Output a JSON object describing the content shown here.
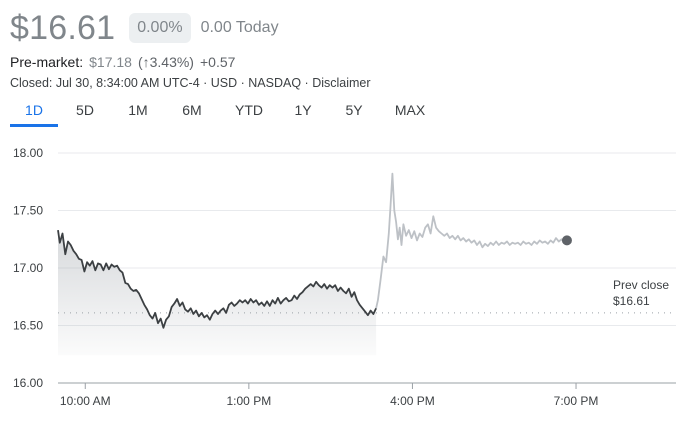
{
  "quote": {
    "price": "$16.61",
    "change_pct": "0.00%",
    "change_today": "0.00 Today",
    "premarket_label": "Pre-market:",
    "premarket_price": "$17.18",
    "premarket_pct": "(↑3.43%)",
    "premarket_abs": "+0.57",
    "closed_info": "Closed: Jul 30, 8:34:00 AM UTC-4 · USD · NASDAQ · ",
    "disclaimer": "Disclaimer"
  },
  "ranges": [
    "1D",
    "5D",
    "1M",
    "6M",
    "YTD",
    "1Y",
    "5Y",
    "MAX"
  ],
  "active_range": "1D",
  "colors": {
    "accent": "#1a73e8",
    "line": "#3c4043",
    "extended": "#bdc1c6",
    "text_muted": "#80868b"
  },
  "chart_data": {
    "type": "line",
    "title": "",
    "xlabel": "",
    "ylabel": "",
    "ylim": [
      16.0,
      18.0
    ],
    "y_ticks": [
      "18.00",
      "17.50",
      "17.00",
      "16.50",
      "16.00"
    ],
    "x_ticks": [
      {
        "label": "10:00 AM",
        "t": 60
      },
      {
        "label": "1:00 PM",
        "t": 240
      },
      {
        "label": "4:00 PM",
        "t": 420
      },
      {
        "label": "7:00 PM",
        "t": 600
      }
    ],
    "x_range_minutes_from_0900": [
      30,
      710
    ],
    "previous_close": 16.61,
    "prev_close_label": "Prev close",
    "prev_close_value": "$16.61",
    "regular_session": [
      [
        30,
        17.33
      ],
      [
        32,
        17.22
      ],
      [
        35,
        17.3
      ],
      [
        38,
        17.12
      ],
      [
        41,
        17.23
      ],
      [
        44,
        17.2
      ],
      [
        47,
        17.15
      ],
      [
        50,
        17.12
      ],
      [
        53,
        17.08
      ],
      [
        56,
        17.07
      ],
      [
        59,
        16.97
      ],
      [
        62,
        17.05
      ],
      [
        65,
        17.02
      ],
      [
        68,
        17.06
      ],
      [
        71,
        16.98
      ],
      [
        74,
        17.04
      ],
      [
        77,
        17.03
      ],
      [
        80,
        16.98
      ],
      [
        83,
        17.04
      ],
      [
        86,
        16.99
      ],
      [
        89,
        17.03
      ],
      [
        92,
        17.01
      ],
      [
        95,
        17.02
      ],
      [
        98,
        16.98
      ],
      [
        101,
        16.96
      ],
      [
        104,
        16.87
      ],
      [
        107,
        16.86
      ],
      [
        110,
        16.82
      ],
      [
        113,
        16.8
      ],
      [
        116,
        16.81
      ],
      [
        119,
        16.78
      ],
      [
        122,
        16.73
      ],
      [
        125,
        16.68
      ],
      [
        128,
        16.64
      ],
      [
        131,
        16.59
      ],
      [
        134,
        16.56
      ],
      [
        137,
        16.61
      ],
      [
        140,
        16.52
      ],
      [
        143,
        16.56
      ],
      [
        146,
        16.48
      ],
      [
        149,
        16.55
      ],
      [
        152,
        16.58
      ],
      [
        155,
        16.66
      ],
      [
        158,
        16.69
      ],
      [
        161,
        16.73
      ],
      [
        164,
        16.67
      ],
      [
        167,
        16.7
      ],
      [
        170,
        16.64
      ],
      [
        173,
        16.62
      ],
      [
        176,
        16.65
      ],
      [
        179,
        16.6
      ],
      [
        182,
        16.63
      ],
      [
        185,
        16.58
      ],
      [
        188,
        16.61
      ],
      [
        191,
        16.57
      ],
      [
        194,
        16.59
      ],
      [
        197,
        16.55
      ],
      [
        200,
        16.6
      ],
      [
        203,
        16.63
      ],
      [
        206,
        16.6
      ],
      [
        209,
        16.63
      ],
      [
        212,
        16.65
      ],
      [
        215,
        16.61
      ],
      [
        218,
        16.68
      ],
      [
        221,
        16.7
      ],
      [
        224,
        16.67
      ],
      [
        227,
        16.69
      ],
      [
        230,
        16.72
      ],
      [
        233,
        16.7
      ],
      [
        236,
        16.72
      ],
      [
        239,
        16.69
      ],
      [
        242,
        16.73
      ],
      [
        245,
        16.7
      ],
      [
        248,
        16.72
      ],
      [
        251,
        16.68
      ],
      [
        254,
        16.7
      ],
      [
        257,
        16.67
      ],
      [
        260,
        16.71
      ],
      [
        263,
        16.67
      ],
      [
        266,
        16.72
      ],
      [
        269,
        16.69
      ],
      [
        272,
        16.74
      ],
      [
        275,
        16.69
      ],
      [
        278,
        16.72
      ],
      [
        281,
        16.74
      ],
      [
        284,
        16.71
      ],
      [
        287,
        16.72
      ],
      [
        290,
        16.76
      ],
      [
        293,
        16.73
      ],
      [
        296,
        16.77
      ],
      [
        299,
        16.79
      ],
      [
        302,
        16.82
      ],
      [
        305,
        16.84
      ],
      [
        308,
        16.86
      ],
      [
        311,
        16.84
      ],
      [
        314,
        16.88
      ],
      [
        317,
        16.85
      ],
      [
        320,
        16.83
      ],
      [
        323,
        16.86
      ],
      [
        326,
        16.82
      ],
      [
        329,
        16.85
      ],
      [
        332,
        16.83
      ],
      [
        335,
        16.85
      ],
      [
        338,
        16.8
      ],
      [
        341,
        16.83
      ],
      [
        344,
        16.8
      ],
      [
        347,
        16.78
      ],
      [
        350,
        16.82
      ],
      [
        353,
        16.75
      ],
      [
        356,
        16.79
      ],
      [
        359,
        16.72
      ],
      [
        362,
        16.68
      ],
      [
        365,
        16.65
      ],
      [
        368,
        16.62
      ],
      [
        371,
        16.59
      ],
      [
        374,
        16.63
      ],
      [
        377,
        16.6
      ],
      [
        380,
        16.65
      ]
    ],
    "extended_session": [
      [
        380,
        16.65
      ],
      [
        382,
        16.72
      ],
      [
        385,
        16.9
      ],
      [
        388,
        17.1
      ],
      [
        391,
        17.05
      ],
      [
        394,
        17.3
      ],
      [
        396,
        17.55
      ],
      [
        398,
        17.82
      ],
      [
        400,
        17.5
      ],
      [
        402,
        17.4
      ],
      [
        404,
        17.25
      ],
      [
        406,
        17.35
      ],
      [
        408,
        17.2
      ],
      [
        410,
        17.38
      ],
      [
        413,
        17.28
      ],
      [
        416,
        17.33
      ],
      [
        419,
        17.26
      ],
      [
        422,
        17.32
      ],
      [
        425,
        17.24
      ],
      [
        428,
        17.3
      ],
      [
        431,
        17.27
      ],
      [
        434,
        17.35
      ],
      [
        437,
        17.38
      ],
      [
        440,
        17.3
      ],
      [
        443,
        17.45
      ],
      [
        446,
        17.35
      ],
      [
        449,
        17.32
      ],
      [
        452,
        17.3
      ],
      [
        455,
        17.28
      ],
      [
        458,
        17.3
      ],
      [
        461,
        17.26
      ],
      [
        464,
        17.28
      ],
      [
        467,
        17.25
      ],
      [
        470,
        17.28
      ],
      [
        473,
        17.24
      ],
      [
        476,
        17.26
      ],
      [
        479,
        17.23
      ],
      [
        482,
        17.25
      ],
      [
        485,
        17.22
      ],
      [
        488,
        17.24
      ],
      [
        491,
        17.2
      ],
      [
        494,
        17.23
      ],
      [
        497,
        17.18
      ],
      [
        500,
        17.21
      ],
      [
        503,
        17.19
      ],
      [
        506,
        17.22
      ],
      [
        509,
        17.2
      ],
      [
        512,
        17.23
      ],
      [
        515,
        17.2
      ],
      [
        518,
        17.22
      ],
      [
        521,
        17.21
      ],
      [
        524,
        17.23
      ],
      [
        527,
        17.2
      ],
      [
        530,
        17.22
      ],
      [
        533,
        17.21
      ],
      [
        536,
        17.22
      ],
      [
        539,
        17.2
      ],
      [
        542,
        17.23
      ],
      [
        545,
        17.21
      ],
      [
        548,
        17.22
      ],
      [
        551,
        17.2
      ],
      [
        554,
        17.23
      ],
      [
        557,
        17.21
      ],
      [
        560,
        17.24
      ],
      [
        563,
        17.22
      ],
      [
        566,
        17.23
      ],
      [
        569,
        17.21
      ],
      [
        572,
        17.24
      ],
      [
        575,
        17.22
      ],
      [
        578,
        17.26
      ],
      [
        581,
        17.23
      ],
      [
        584,
        17.25
      ],
      [
        587,
        17.22
      ],
      [
        590,
        17.24
      ]
    ]
  }
}
